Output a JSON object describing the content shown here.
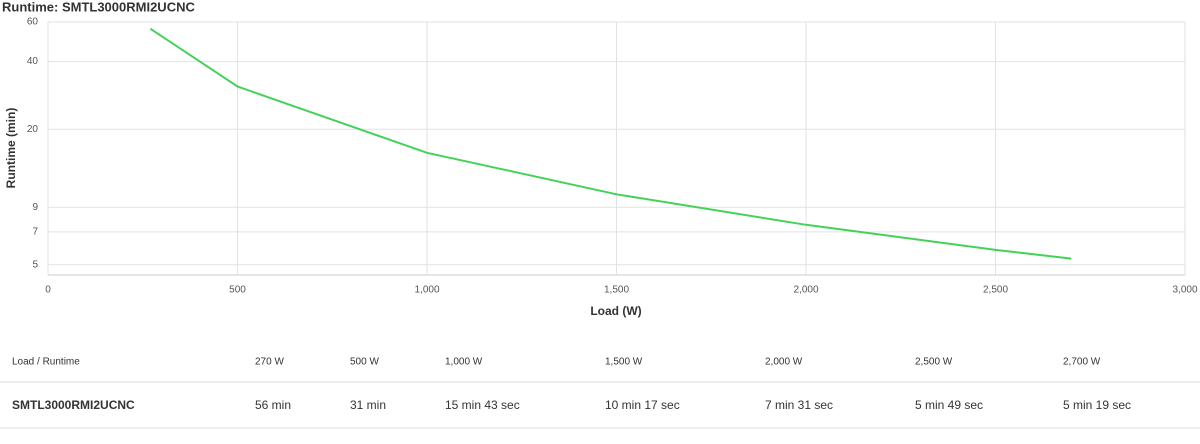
{
  "chart_data": {
    "type": "line",
    "title": "Runtime: SMTL3000RMI2UCNC",
    "x_label": "Load (W)",
    "y_label": "Runtime (min)",
    "x": [
      270,
      500,
      1000,
      1500,
      2000,
      2500,
      2700
    ],
    "series": [
      {
        "name": "SMTL3000RMI2UCNC",
        "color": "#45d158",
        "values": [
          56,
          31,
          15.72,
          10.28,
          7.52,
          5.82,
          5.32
        ]
      }
    ],
    "xlim": [
      0,
      3000
    ],
    "xticks": [
      0,
      500,
      {
        "value": 1000,
        "label": "1,000"
      },
      {
        "value": 1500,
        "label": "1,500"
      },
      {
        "value": 2000,
        "label": "2,000"
      },
      {
        "value": 2500,
        "label": "2,500"
      },
      {
        "value": 3000,
        "label": "3,000"
      }
    ],
    "ylim": [
      4.5,
      60
    ],
    "yticks": [
      5,
      7,
      9,
      20,
      40,
      60
    ],
    "log_y": true,
    "grid": true
  },
  "table": {
    "header": [
      "Load / Runtime",
      "270 W",
      "500 W",
      "1,000 W",
      "1,500 W",
      "2,000 W",
      "2,500 W",
      "2,700 W"
    ],
    "rows": [
      [
        "SMTL3000RMI2UCNC",
        "56 min",
        "31 min",
        "15 min 43 sec",
        "10 min 17 sec",
        "7 min 31 sec",
        "5 min 49 sec",
        "5 min 19 sec"
      ]
    ]
  }
}
